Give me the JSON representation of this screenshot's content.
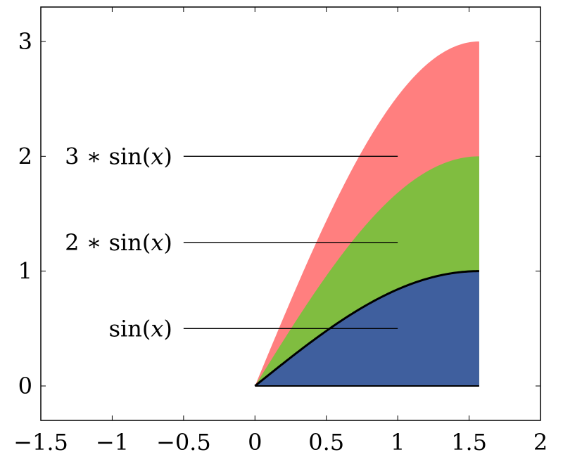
{
  "chart_data": {
    "type": "area",
    "title": "",
    "xlabel": "",
    "ylabel": "",
    "xlim": [
      -1.5,
      2
    ],
    "ylim": [
      -0.3,
      3.3
    ],
    "xticks": [
      -1.5,
      -1,
      -0.5,
      0,
      0.5,
      1,
      1.5,
      2
    ],
    "xtick_labels": [
      "−1.5",
      "−1",
      "−0.5",
      "0",
      "0.5",
      "1",
      "1.5",
      "2"
    ],
    "yticks": [
      0,
      1,
      2,
      3
    ],
    "ytick_labels": [
      "0",
      "1",
      "2",
      "3"
    ],
    "x_domain": [
      0,
      1.5708
    ],
    "stacked": true,
    "colors": {
      "area_1": "#3f5f9e",
      "area_2": "#80bd40",
      "area_3": "#ff7f7f",
      "axis": "#000000",
      "boundary_line": "#000000"
    },
    "series": [
      {
        "function": "sin(x)",
        "factor": 1,
        "x": [
          0,
          0.2618,
          0.5236,
          0.7854,
          1.0472,
          1.309,
          1.5708
        ],
        "y": [
          0,
          0.259,
          0.5,
          0.707,
          0.866,
          0.966,
          1
        ]
      },
      {
        "function": "2*sin(x)",
        "factor": 2,
        "x": [
          0,
          0.2618,
          0.5236,
          0.7854,
          1.0472,
          1.309,
          1.5708
        ],
        "y": [
          0,
          0.518,
          1,
          1.414,
          1.732,
          1.932,
          2
        ]
      },
      {
        "function": "3*sin(x)",
        "factor": 3,
        "x": [
          0,
          0.2618,
          0.5236,
          0.7854,
          1.0472,
          1.309,
          1.5708
        ],
        "y": [
          0,
          0.776,
          1.5,
          2.121,
          2.598,
          2.898,
          3
        ]
      }
    ],
    "annotations": [
      {
        "prefix": "3 ∗ sin(",
        "var": "x",
        "suffix": ")",
        "y": 2,
        "line_x": [
          -0.5,
          1
        ]
      },
      {
        "prefix": "2 ∗ sin(",
        "var": "x",
        "suffix": ")",
        "y": 1.25,
        "line_x": [
          -0.5,
          1
        ]
      },
      {
        "prefix": "sin(",
        "var": "x",
        "suffix": ")",
        "y": 0.5,
        "line_x": [
          -0.5,
          1
        ]
      }
    ]
  }
}
